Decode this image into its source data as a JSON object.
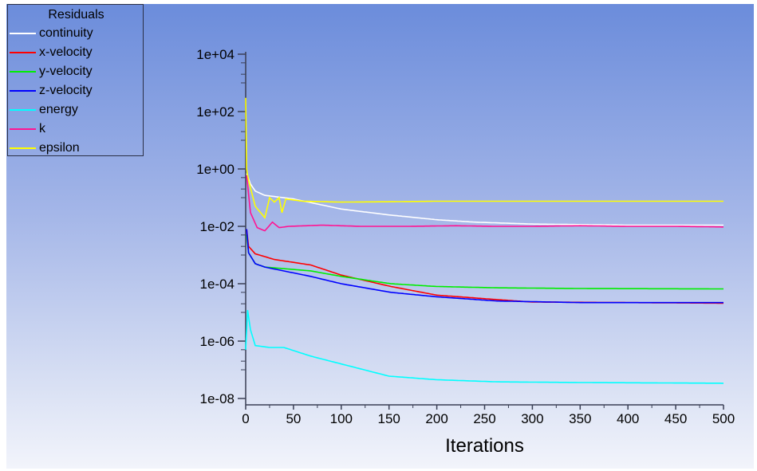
{
  "chart_data": {
    "type": "line",
    "legend": {
      "title": "Residuals",
      "placement": "top-left"
    },
    "xlabel": "Iterations",
    "ylabel": "",
    "xlim": [
      0,
      500
    ],
    "ylim": [
      1e-08,
      10000.0
    ],
    "yscale": "log",
    "grid": false,
    "x_ticks": [
      0,
      50,
      100,
      150,
      200,
      250,
      300,
      350,
      400,
      450,
      500
    ],
    "y_ticks": [
      "1e+04",
      "1e+02",
      "1e+00",
      "1e-02",
      "1e-04",
      "1e-06",
      "1e-08"
    ],
    "series": [
      {
        "name": "continuity",
        "color": "#ffffff",
        "points": [
          [
            1,
            0.7
          ],
          [
            5,
            0.3
          ],
          [
            10,
            0.17
          ],
          [
            20,
            0.12
          ],
          [
            50,
            0.09
          ],
          [
            75,
            0.06
          ],
          [
            100,
            0.04
          ],
          [
            150,
            0.025
          ],
          [
            200,
            0.017
          ],
          [
            240,
            0.014
          ],
          [
            300,
            0.012
          ],
          [
            400,
            0.011
          ],
          [
            500,
            0.011
          ]
        ]
      },
      {
        "name": "x-velocity",
        "color": "#ff0000",
        "points": [
          [
            1,
            0.008
          ],
          [
            3,
            0.002
          ],
          [
            10,
            0.0011
          ],
          [
            30,
            0.0007
          ],
          [
            68,
            0.00045
          ],
          [
            100,
            0.0002
          ],
          [
            152,
            8e-05
          ],
          [
            200,
            4e-05
          ],
          [
            263,
            2.8e-05
          ],
          [
            300,
            2.3e-05
          ],
          [
            400,
            2.2e-05
          ],
          [
            500,
            2.1e-05
          ]
        ]
      },
      {
        "name": "y-velocity",
        "color": "#00ee00",
        "points": [
          [
            1,
            0.005
          ],
          [
            3,
            0.0012
          ],
          [
            10,
            0.0005
          ],
          [
            20,
            0.00038
          ],
          [
            68,
            0.00028
          ],
          [
            100,
            0.00018
          ],
          [
            152,
            0.0001
          ],
          [
            200,
            8e-05
          ],
          [
            263,
            7.2e-05
          ],
          [
            350,
            6.8e-05
          ],
          [
            500,
            6.6e-05
          ]
        ]
      },
      {
        "name": "z-velocity",
        "color": "#0000ff",
        "points": [
          [
            1,
            0.008
          ],
          [
            3,
            0.0012
          ],
          [
            10,
            0.0005
          ],
          [
            20,
            0.00038
          ],
          [
            68,
            0.00018
          ],
          [
            100,
            0.0001
          ],
          [
            152,
            5e-05
          ],
          [
            200,
            3.5e-05
          ],
          [
            263,
            2.5e-05
          ],
          [
            350,
            2.2e-05
          ],
          [
            500,
            2.2e-05
          ]
        ]
      },
      {
        "name": "energy",
        "color": "#00ffff",
        "points": [
          [
            0,
            5e-07
          ],
          [
            2,
            1.2e-05
          ],
          [
            5,
            2.5e-06
          ],
          [
            10,
            7e-07
          ],
          [
            25,
            6e-07
          ],
          [
            40,
            6e-07
          ],
          [
            68,
            3e-07
          ],
          [
            100,
            1.6e-07
          ],
          [
            150,
            6e-08
          ],
          [
            200,
            4.5e-08
          ],
          [
            263,
            3.8e-08
          ],
          [
            350,
            3.6e-08
          ],
          [
            500,
            3.4e-08
          ]
        ]
      },
      {
        "name": "k",
        "color": "#ff1493",
        "points": [
          [
            1,
            0.6
          ],
          [
            5,
            0.03
          ],
          [
            12,
            0.009
          ],
          [
            20,
            0.007
          ],
          [
            28,
            0.014
          ],
          [
            35,
            0.009
          ],
          [
            45,
            0.01
          ],
          [
            80,
            0.011
          ],
          [
            120,
            0.01
          ],
          [
            170,
            0.01
          ],
          [
            220,
            0.0105
          ],
          [
            260,
            0.01
          ],
          [
            300,
            0.01
          ],
          [
            350,
            0.0105
          ],
          [
            400,
            0.01
          ],
          [
            450,
            0.01
          ],
          [
            500,
            0.0095
          ]
        ]
      },
      {
        "name": "epsilon",
        "color": "#ffff00",
        "points": [
          [
            0,
            300
          ],
          [
            1,
            1
          ],
          [
            3,
            0.4
          ],
          [
            10,
            0.05
          ],
          [
            20,
            0.02
          ],
          [
            25,
            0.1
          ],
          [
            30,
            0.07
          ],
          [
            35,
            0.1
          ],
          [
            38,
            0.03
          ],
          [
            42,
            0.09
          ],
          [
            60,
            0.075
          ],
          [
            100,
            0.07
          ],
          [
            150,
            0.072
          ],
          [
            200,
            0.075
          ],
          [
            250,
            0.075
          ],
          [
            300,
            0.075
          ],
          [
            350,
            0.075
          ],
          [
            400,
            0.075
          ],
          [
            450,
            0.075
          ],
          [
            500,
            0.075
          ]
        ]
      }
    ]
  }
}
